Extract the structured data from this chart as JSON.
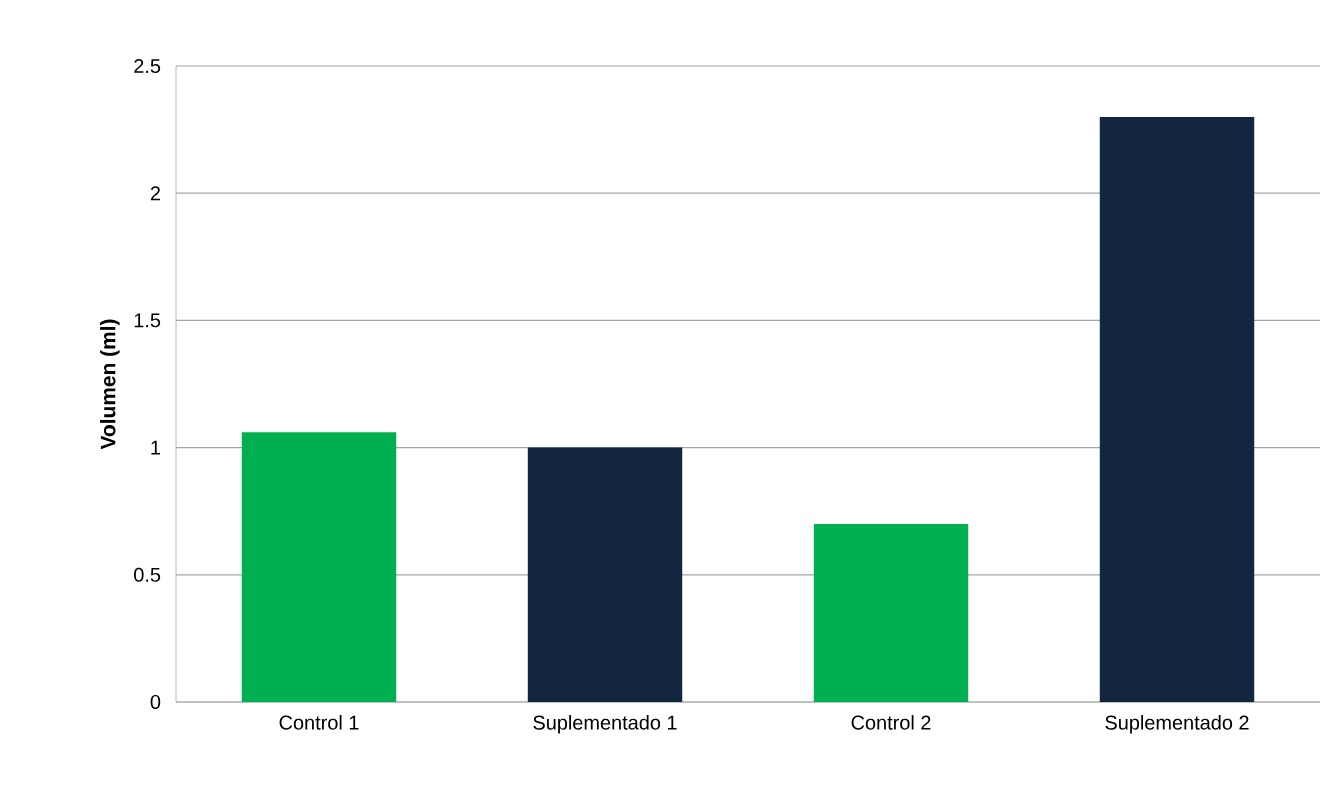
{
  "chart_data": {
    "type": "bar",
    "ylabel": "Volumen (ml)",
    "categories": [
      "Control 1",
      "Suplementado 1",
      "Control 2",
      "Suplementado 2"
    ],
    "values": [
      1.06,
      1.0,
      0.7,
      2.3
    ],
    "colors": [
      "#00b050",
      "#12263f",
      "#00b050",
      "#12263f"
    ],
    "ylim": [
      0,
      2.5
    ],
    "yticks": [
      0,
      0.5,
      1,
      1.5,
      2,
      2.5
    ],
    "grid": "y"
  }
}
